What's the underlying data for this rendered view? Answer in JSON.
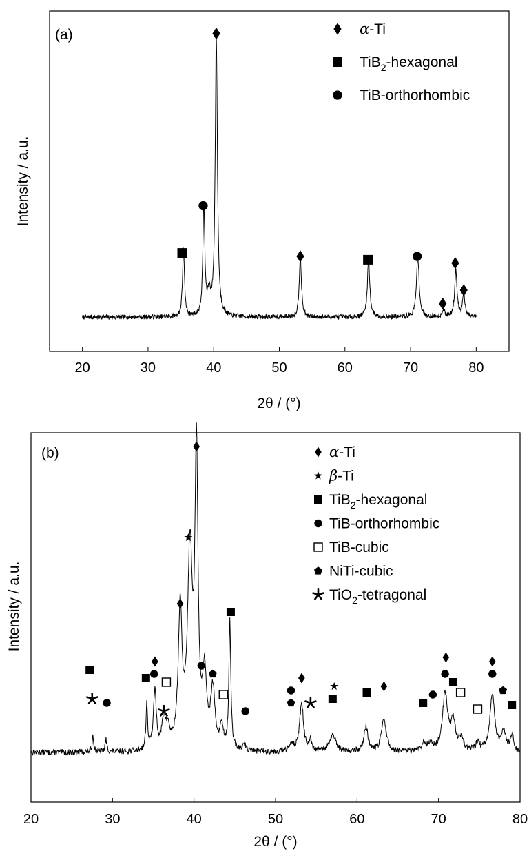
{
  "chart_data": [
    {
      "type": "line",
      "panel_label": "(a)",
      "xlabel": "2θ / (°)",
      "ylabel": "Intensity / a.u.",
      "xlim": [
        15,
        85
      ],
      "xticks": [
        20,
        30,
        40,
        50,
        60,
        70,
        80
      ],
      "y_ticks_shown": false,
      "grid": false,
      "legend_position": "top-right",
      "legend": [
        {
          "marker": "diamond",
          "label": "α-Ti"
        },
        {
          "marker": "square",
          "label": "TiB2-hexagonal"
        },
        {
          "marker": "circle",
          "label": "TiB-orthorhombic"
        }
      ],
      "series": [
        {
          "x_range": [
            20,
            80
          ],
          "baseline": 2,
          "peaks": [
            {
              "x": 35.4,
              "h": 20,
              "w": 0.18,
              "phase": "TiB2-hexagonal"
            },
            {
              "x": 38.5,
              "h": 32,
              "w": 0.18,
              "phase": "TiB-orthorhombic"
            },
            {
              "x": 39.3,
              "h": 6,
              "w": 0.3
            },
            {
              "x": 40.4,
              "h": 83,
              "w": 0.2,
              "phase": "α-Ti"
            },
            {
              "x": 53.2,
              "h": 18,
              "w": 0.2,
              "phase": "α-Ti"
            },
            {
              "x": 63.6,
              "h": 17,
              "w": 0.22,
              "phase": "TiB2-hexagonal"
            },
            {
              "x": 71.1,
              "h": 18,
              "w": 0.24,
              "phase": "TiB-orthorhombic"
            },
            {
              "x": 75.0,
              "h": 2,
              "w": 0.25,
              "phase": "α-Ti"
            },
            {
              "x": 76.9,
              "h": 14,
              "w": 0.22,
              "phase": "α-Ti"
            },
            {
              "x": 78.1,
              "h": 7,
              "w": 0.2,
              "phase": "α-Ti"
            }
          ]
        }
      ],
      "markers": [
        {
          "symbol": "square",
          "x": 35.2,
          "y": 21
        },
        {
          "symbol": "circle",
          "x": 38.4,
          "y": 35
        },
        {
          "symbol": "diamond",
          "x": 40.4,
          "y": 86
        },
        {
          "symbol": "diamond",
          "x": 53.2,
          "y": 20
        },
        {
          "symbol": "square",
          "x": 63.5,
          "y": 19
        },
        {
          "symbol": "circle",
          "x": 71.0,
          "y": 20
        },
        {
          "symbol": "diamond",
          "x": 74.9,
          "y": 6
        },
        {
          "symbol": "diamond",
          "x": 76.8,
          "y": 18
        },
        {
          "symbol": "diamond",
          "x": 78.1,
          "y": 10
        }
      ]
    },
    {
      "type": "line",
      "panel_label": "(b)",
      "xlabel": "2θ / (°)",
      "ylabel": "Intensity / a.u.",
      "xlim": [
        20,
        80
      ],
      "xticks": [
        20,
        30,
        40,
        50,
        60,
        70,
        80
      ],
      "y_ticks_shown": false,
      "grid": false,
      "legend_position": "top-right",
      "legend": [
        {
          "marker": "diamond",
          "label": "α-Ti"
        },
        {
          "marker": "star",
          "label": "β-Ti"
        },
        {
          "marker": "square",
          "label": "TiB2-hexagonal"
        },
        {
          "marker": "circle",
          "label": "TiB-orthorhombic"
        },
        {
          "marker": "open-square",
          "label": "TiB-cubic"
        },
        {
          "marker": "pentagon",
          "label": "NiTi-cubic"
        },
        {
          "marker": "asterisk",
          "label": "TiO2-tetragonal"
        }
      ],
      "series": [
        {
          "x_range": [
            20,
            80
          ],
          "baseline": 2,
          "peaks": [
            {
              "x": 27.6,
              "h": 4,
              "w": 0.12
            },
            {
              "x": 29.2,
              "h": 3,
              "w": 0.12
            },
            {
              "x": 34.2,
              "h": 11,
              "w": 0.12
            },
            {
              "x": 35.2,
              "h": 14,
              "w": 0.22
            },
            {
              "x": 36.3,
              "h": 7,
              "w": 0.28
            },
            {
              "x": 36.8,
              "h": 4,
              "w": 0.25
            },
            {
              "x": 38.3,
              "h": 33,
              "w": 0.28
            },
            {
              "x": 39.5,
              "h": 47,
              "w": 0.35
            },
            {
              "x": 40.3,
              "h": 70,
              "w": 0.22
            },
            {
              "x": 41.3,
              "h": 17,
              "w": 0.3
            },
            {
              "x": 42.3,
              "h": 14,
              "w": 0.3
            },
            {
              "x": 43.4,
              "h": 5,
              "w": 0.25
            },
            {
              "x": 44.4,
              "h": 31,
              "w": 0.14
            },
            {
              "x": 46.2,
              "h": 1.5,
              "w": 0.2
            },
            {
              "x": 52.0,
              "h": 2,
              "w": 0.3
            },
            {
              "x": 53.2,
              "h": 12,
              "w": 0.28
            },
            {
              "x": 54.3,
              "h": 2.5,
              "w": 0.15
            },
            {
              "x": 57.0,
              "h": 4,
              "w": 0.45
            },
            {
              "x": 61.1,
              "h": 6,
              "w": 0.3
            },
            {
              "x": 63.3,
              "h": 8,
              "w": 0.35
            },
            {
              "x": 68.2,
              "h": 2,
              "w": 0.3
            },
            {
              "x": 69.0,
              "h": 2,
              "w": 0.3
            },
            {
              "x": 70.8,
              "h": 14,
              "w": 0.38
            },
            {
              "x": 71.8,
              "h": 7,
              "w": 0.35
            },
            {
              "x": 72.8,
              "h": 3,
              "w": 0.3
            },
            {
              "x": 74.8,
              "h": 2,
              "w": 0.3
            },
            {
              "x": 76.6,
              "h": 14,
              "w": 0.35
            },
            {
              "x": 78.0,
              "h": 5,
              "w": 0.3
            },
            {
              "x": 79.0,
              "h": 4,
              "w": 0.25
            }
          ]
        }
      ],
      "markers": [
        {
          "symbol": "square",
          "x": 27.2,
          "y": 22
        },
        {
          "symbol": "asterisk",
          "x": 27.5,
          "y": 15
        },
        {
          "symbol": "circle",
          "x": 29.3,
          "y": 14
        },
        {
          "symbol": "square",
          "x": 34.1,
          "y": 20
        },
        {
          "symbol": "diamond",
          "x": 35.2,
          "y": 24
        },
        {
          "symbol": "circle",
          "x": 35.1,
          "y": 21
        },
        {
          "symbol": "open-square",
          "x": 36.6,
          "y": 19
        },
        {
          "symbol": "asterisk",
          "x": 36.3,
          "y": 12
        },
        {
          "symbol": "diamond",
          "x": 38.3,
          "y": 38
        },
        {
          "symbol": "star",
          "x": 39.3,
          "y": 54
        },
        {
          "symbol": "diamond",
          "x": 40.3,
          "y": 76
        },
        {
          "symbol": "circle",
          "x": 40.9,
          "y": 23
        },
        {
          "symbol": "pentagon",
          "x": 42.3,
          "y": 21
        },
        {
          "symbol": "square",
          "x": 44.5,
          "y": 36
        },
        {
          "symbol": "open-square",
          "x": 43.6,
          "y": 16
        },
        {
          "symbol": "circle",
          "x": 46.3,
          "y": 12
        },
        {
          "symbol": "circle",
          "x": 51.9,
          "y": 17
        },
        {
          "symbol": "pentagon",
          "x": 51.9,
          "y": 14
        },
        {
          "symbol": "diamond",
          "x": 53.2,
          "y": 20
        },
        {
          "symbol": "asterisk",
          "x": 54.3,
          "y": 14
        },
        {
          "symbol": "star",
          "x": 57.2,
          "y": 18
        },
        {
          "symbol": "square",
          "x": 57.0,
          "y": 15
        },
        {
          "symbol": "square",
          "x": 61.2,
          "y": 16.5
        },
        {
          "symbol": "diamond",
          "x": 63.3,
          "y": 18
        },
        {
          "symbol": "square",
          "x": 68.1,
          "y": 14
        },
        {
          "symbol": "circle",
          "x": 69.3,
          "y": 16
        },
        {
          "symbol": "diamond",
          "x": 70.9,
          "y": 25
        },
        {
          "symbol": "circle",
          "x": 70.8,
          "y": 21
        },
        {
          "symbol": "square",
          "x": 71.8,
          "y": 19
        },
        {
          "symbol": "open-square",
          "x": 72.7,
          "y": 16.5
        },
        {
          "symbol": "open-square",
          "x": 74.8,
          "y": 12.5
        },
        {
          "symbol": "diamond",
          "x": 76.6,
          "y": 24
        },
        {
          "symbol": "circle",
          "x": 76.6,
          "y": 21
        },
        {
          "symbol": "pentagon",
          "x": 77.9,
          "y": 17
        },
        {
          "symbol": "square",
          "x": 79.0,
          "y": 13.5
        }
      ]
    }
  ]
}
